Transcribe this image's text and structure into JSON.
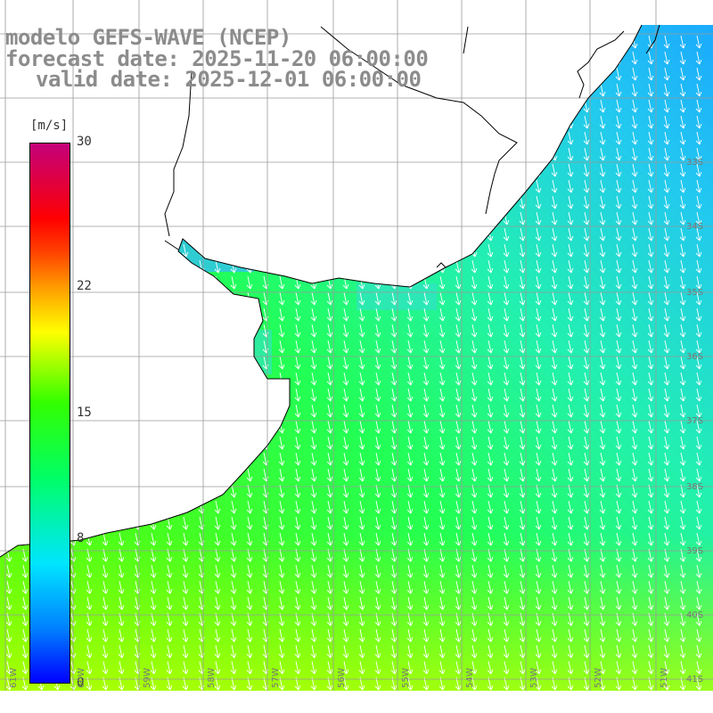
{
  "header": {
    "model": "modelo GEFS-WAVE (NCEP)",
    "forecast": "forecast date: 2025-11-20 06:00:00",
    "valid": "valid date: 2025-12-01 06:00:00"
  },
  "colorbar": {
    "unit": "[m/s]",
    "ticks": [
      {
        "label": "30",
        "value": 30
      },
      {
        "label": "22",
        "value": 22
      },
      {
        "label": "15",
        "value": 15
      },
      {
        "label": "8",
        "value": 8
      },
      {
        "label": "0",
        "value": 0
      }
    ]
  },
  "axes": {
    "lon_labels": [
      "61W",
      "60W",
      "59W",
      "58W",
      "57W",
      "56W",
      "55W",
      "54W",
      "53W",
      "52W",
      "51W"
    ],
    "lat_labels": [
      "33S",
      "34S",
      "35S",
      "36S",
      "37S",
      "38S",
      "39S",
      "40S",
      "41S"
    ]
  },
  "style": {
    "land": "#ffffff",
    "coast": "#000000",
    "grid": "#9a9a9a",
    "arrow": "#ffffff"
  }
}
